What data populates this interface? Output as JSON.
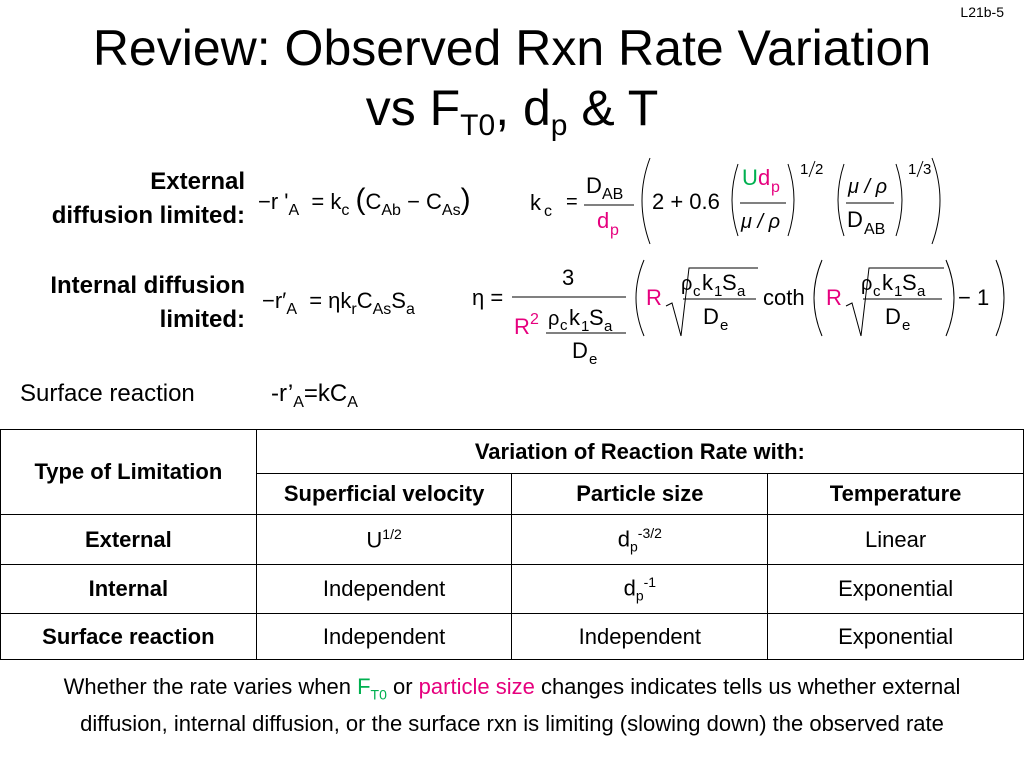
{
  "slide_id": "L21b-5",
  "title": {
    "line1": "Review: Observed Rxn Rate Variation",
    "line2_prefix": "vs F",
    "line2_sub_t0": "T0",
    "line2_mid": ", d",
    "line2_sub_p": "p",
    "line2_suffix": " & T"
  },
  "external": {
    "label_line1": "External",
    "label_line2": "diffusion limited:"
  },
  "internal": {
    "label_line1": "Internal diffusion",
    "label_line2": "limited:"
  },
  "surface": {
    "label": "Surface reaction",
    "eq_prefix": "-r’",
    "eq_sub_a": "A",
    "eq_mid": "=kC",
    "eq_sub_a2": "A"
  },
  "table": {
    "header_type": "Type of Limitation",
    "header_variation": "Variation of Reaction Rate with:",
    "col_velocity": "Superficial velocity",
    "col_particle": "Particle size",
    "col_temperature": "Temperature",
    "rows": [
      {
        "type": "External",
        "velocity_base": "U",
        "velocity_exp": "1/2",
        "particle_base": "d",
        "particle_sub": "p",
        "particle_exp": "-3/2",
        "temperature": "Linear"
      },
      {
        "type": "Internal",
        "velocity": "Independent",
        "particle_base": "d",
        "particle_sub": "p",
        "particle_exp": "-1",
        "temperature": "Exponential"
      },
      {
        "type": "Surface reaction",
        "velocity": "Independent",
        "particle": "Independent",
        "temperature": "Exponential"
      }
    ]
  },
  "footer": {
    "part1": "Whether the rate varies when ",
    "ft0_base": "F",
    "ft0_sub": "T0",
    "part2": " or ",
    "particle_size": "particle size",
    "part3": " changes indicates tells us whether external diffusion, internal diffusion, or the surface rxn is limiting (slowing down) the observed rate"
  },
  "colors": {
    "magenta": "#e6007e",
    "green": "#00b050"
  }
}
